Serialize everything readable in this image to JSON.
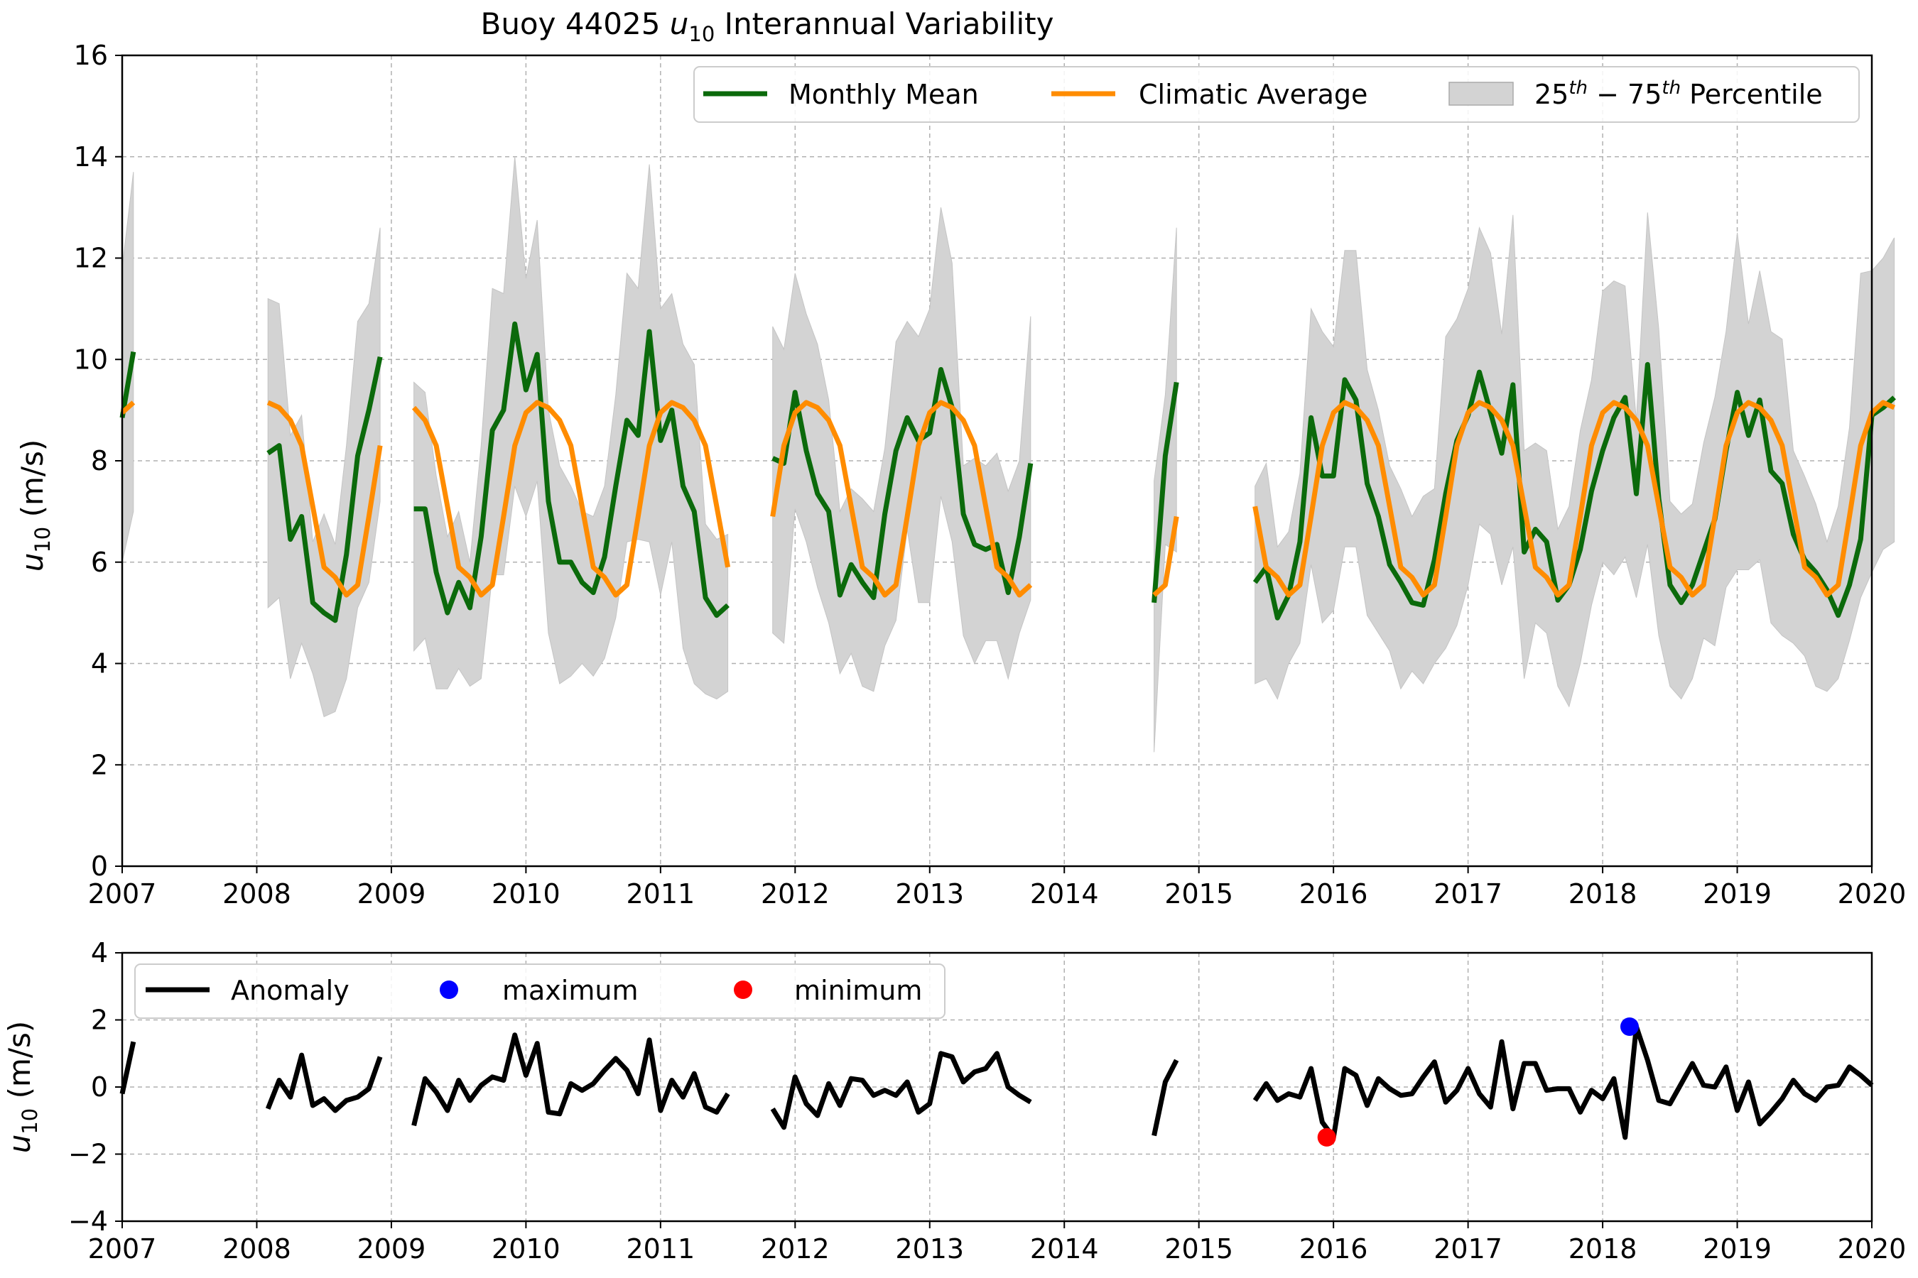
{
  "chart_data": [
    {
      "type": "line",
      "title_main": "Buoy 44025 ",
      "title_var": "u",
      "title_sub": "10",
      "title_rest": " Interannual Variability",
      "ylabel_var": "u",
      "ylabel_sub": "10",
      "ylabel_unit": " (m/s)",
      "xlim": [
        2007,
        2020
      ],
      "ylim": [
        0,
        16
      ],
      "xticks": [
        "2007",
        "2008",
        "2009",
        "2010",
        "2011",
        "2012",
        "2013",
        "2014",
        "2015",
        "2016",
        "2017",
        "2018",
        "2019",
        "2020"
      ],
      "yticks": [
        "0",
        "2",
        "4",
        "6",
        "8",
        "10",
        "12",
        "14",
        "16"
      ],
      "grid": true,
      "legend_position": "top-right",
      "legend": {
        "monthly_mean": "Monthly Mean",
        "climatic_average": "Climatic Average",
        "percentile_pre": "25",
        "percentile_sup1": "th",
        "percentile_mid": " − 75",
        "percentile_sup2": "th",
        "percentile_post": " Percentile"
      },
      "colors": {
        "monthly_mean": "#0b6a0b",
        "climatic_average": "#ff8c00",
        "percentile_band": "#d3d3d3"
      },
      "climatology": [
        8.95,
        9.15,
        9.05,
        8.8,
        8.3,
        7.1,
        5.9,
        5.7,
        5.35,
        5.55,
        6.9,
        8.3
      ],
      "segments": [
        {
          "start": 2007.0,
          "mean": [
            8.85,
            10.15
          ],
          "p25": [
            6.0,
            7.0
          ],
          "p75": [
            11.8,
            13.7
          ]
        },
        {
          "start": 2008.083,
          "mean": [
            8.15,
            8.3,
            6.45,
            6.9,
            5.2,
            5.0,
            4.85,
            6.15,
            8.1,
            9.0,
            10.05
          ],
          "p25": [
            5.1,
            5.3,
            3.7,
            4.4,
            3.8,
            2.95,
            3.05,
            3.7,
            5.1,
            5.6,
            7.2
          ],
          "p75": [
            11.2,
            11.1,
            8.5,
            8.9,
            6.4,
            6.95,
            6.35,
            8.3,
            10.75,
            11.1,
            12.6
          ]
        },
        {
          "start": 2009.167,
          "mean": [
            7.05,
            7.05,
            5.8,
            5.0,
            5.6,
            5.1,
            6.5,
            8.6,
            9.0,
            10.7,
            9.4,
            10.1,
            7.2,
            6.0,
            6.0,
            5.6,
            5.4,
            6.1,
            7.5,
            8.8,
            8.5,
            10.55,
            8.4,
            9.0,
            7.5,
            7.0,
            5.3,
            4.95,
            5.15
          ],
          "p25": [
            4.25,
            4.5,
            3.5,
            3.5,
            3.9,
            3.55,
            3.7,
            5.75,
            5.75,
            7.5,
            6.9,
            7.6,
            4.6,
            3.6,
            3.75,
            4.0,
            3.75,
            4.1,
            4.9,
            6.4,
            6.45,
            6.4,
            5.35,
            6.4,
            4.3,
            3.6,
            3.4,
            3.3,
            3.45
          ],
          "p75": [
            9.55,
            9.35,
            7.7,
            6.5,
            7.0,
            6.0,
            8.3,
            11.4,
            11.3,
            14.0,
            11.6,
            12.75,
            9.0,
            7.9,
            7.5,
            7.0,
            6.9,
            7.5,
            9.3,
            11.7,
            11.4,
            13.85,
            11.0,
            11.3,
            10.3,
            9.9,
            6.75,
            6.45,
            6.55
          ]
        },
        {
          "start": 2011.833,
          "mean": [
            8.05,
            7.95,
            9.35,
            8.2,
            7.35,
            7.0,
            5.35,
            5.95,
            5.6,
            5.3,
            6.95,
            8.2,
            8.85,
            8.4,
            8.55,
            9.8,
            9.05,
            6.95,
            6.35,
            6.25,
            6.35,
            5.4,
            6.5,
            7.95
          ],
          "p25": [
            4.6,
            4.4,
            7.05,
            6.4,
            5.5,
            4.8,
            3.8,
            4.2,
            3.55,
            3.45,
            4.35,
            4.85,
            6.65,
            5.2,
            5.2,
            7.3,
            6.4,
            4.55,
            4.0,
            4.45,
            4.45,
            3.7,
            4.6,
            5.25
          ],
          "p75": [
            10.65,
            10.2,
            11.7,
            10.9,
            10.3,
            9.2,
            7.0,
            7.45,
            7.25,
            7.0,
            8.25,
            10.35,
            10.75,
            10.45,
            11.0,
            13.0,
            11.9,
            7.9,
            8.05,
            7.9,
            8.15,
            7.4,
            8.0,
            10.85
          ]
        },
        {
          "start": 2014.667,
          "mean": [
            5.2,
            8.1,
            9.55
          ],
          "p25": [
            2.25,
            6.35,
            6.2
          ],
          "p75": [
            7.6,
            9.3,
            12.6
          ]
        },
        {
          "start": 2015.417,
          "mean": [
            5.6,
            5.9,
            4.9,
            5.35,
            6.4,
            8.85,
            7.7,
            7.7,
            9.6,
            9.2,
            7.55,
            6.9,
            5.95,
            5.6,
            5.2,
            5.15,
            6.05,
            7.35,
            8.4,
            8.9,
            9.75,
            8.95,
            8.15,
            9.5,
            6.2,
            6.65,
            6.4,
            5.25,
            5.55,
            6.25,
            7.4,
            8.2,
            8.85,
            9.25,
            7.35,
            9.9,
            7.25,
            5.55,
            5.2,
            5.55,
            6.2,
            6.85,
            8.2,
            9.35,
            8.5,
            9.2,
            7.8,
            7.55,
            6.55,
            6.05,
            5.8,
            5.45,
            4.95,
            5.55,
            6.45,
            8.9,
            9.05,
            9.25
          ],
          "p25": [
            3.6,
            3.7,
            3.3,
            4.0,
            4.4,
            5.95,
            4.8,
            5.05,
            6.3,
            6.3,
            4.95,
            4.6,
            4.25,
            3.5,
            3.85,
            3.6,
            4.0,
            4.3,
            4.75,
            5.55,
            6.75,
            6.55,
            5.55,
            6.3,
            3.7,
            4.8,
            4.6,
            3.55,
            3.15,
            4.0,
            5.15,
            6.0,
            5.75,
            6.1,
            5.3,
            6.35,
            4.55,
            3.55,
            3.3,
            3.7,
            4.5,
            4.35,
            5.5,
            5.85,
            5.85,
            6.05,
            4.8,
            4.55,
            4.4,
            4.15,
            3.55,
            3.45,
            3.7,
            4.45,
            5.3,
            5.8,
            6.25,
            6.4
          ],
          "p75": [
            7.5,
            7.95,
            6.3,
            6.6,
            7.75,
            11.0,
            10.55,
            10.25,
            12.15,
            12.15,
            9.8,
            9.0,
            7.9,
            7.45,
            6.9,
            7.3,
            7.45,
            10.45,
            10.8,
            11.4,
            12.6,
            12.1,
            10.5,
            12.85,
            8.2,
            8.35,
            8.2,
            6.65,
            7.1,
            8.6,
            9.6,
            11.35,
            11.55,
            11.45,
            8.8,
            12.9,
            10.6,
            7.2,
            6.95,
            7.15,
            8.35,
            9.25,
            10.55,
            12.5,
            10.7,
            11.75,
            10.55,
            10.4,
            8.2,
            7.7,
            7.15,
            6.4,
            7.1,
            8.65,
            11.7,
            11.75,
            12.0,
            12.4
          ]
        }
      ]
    },
    {
      "type": "line",
      "ylabel_var": "u",
      "ylabel_sub": "10",
      "ylabel_unit": " (m/s)",
      "xlim": [
        2007,
        2020
      ],
      "ylim": [
        -4,
        4
      ],
      "xticks": [
        "2007",
        "2008",
        "2009",
        "2010",
        "2011",
        "2012",
        "2013",
        "2014",
        "2015",
        "2016",
        "2017",
        "2018",
        "2019",
        "2020"
      ],
      "yticks": [
        "−4",
        "−2",
        "0",
        "2",
        "4"
      ],
      "grid": true,
      "legend_position": "top-left",
      "legend": {
        "anomaly": "Anomaly",
        "maximum": "maximum",
        "minimum": "minimum"
      },
      "colors": {
        "anomaly": "#000000",
        "maximum": "#0000ff",
        "minimum": "#ff0000"
      },
      "maximum_point": {
        "x": 2018.2,
        "y": 1.8
      },
      "minimum_point": {
        "x": 2015.95,
        "y": -1.5
      },
      "segments": [
        {
          "start": 2007.0,
          "values": [
            -0.2,
            1.35
          ]
        },
        {
          "start": 2008.083,
          "values": [
            -0.65,
            0.2,
            -0.3,
            0.95,
            -0.55,
            -0.35,
            -0.7,
            -0.4,
            -0.3,
            -0.05,
            0.9
          ]
        },
        {
          "start": 2009.167,
          "values": [
            -1.15,
            0.25,
            -0.15,
            -0.7,
            0.2,
            -0.4,
            0.05,
            0.3,
            0.2,
            1.55,
            0.35,
            1.3,
            -0.75,
            -0.8,
            0.1,
            -0.1,
            0.1,
            0.5,
            0.85,
            0.5,
            -0.2,
            1.4,
            -0.7,
            0.2,
            -0.3,
            0.4,
            -0.6,
            -0.75,
            -0.2
          ]
        },
        {
          "start": 2011.833,
          "values": [
            -0.65,
            -1.2,
            0.3,
            -0.5,
            -0.85,
            0.1,
            -0.55,
            0.25,
            0.2,
            -0.25,
            -0.1,
            -0.25,
            0.15,
            -0.75,
            -0.5,
            1.0,
            0.9,
            0.15,
            0.45,
            0.55,
            1.0,
            0.0,
            -0.25,
            -0.45
          ]
        },
        {
          "start": 2014.667,
          "values": [
            -1.45,
            0.15,
            0.8
          ]
        },
        {
          "start": 2015.417,
          "values": [
            -0.4,
            0.1,
            -0.4,
            -0.2,
            -0.3,
            0.55,
            -1.05,
            -1.5,
            0.55,
            0.35,
            -0.55,
            0.25,
            -0.05,
            -0.25,
            -0.2,
            0.3,
            0.75,
            -0.45,
            -0.1,
            0.55,
            -0.2,
            -0.6,
            1.35,
            -0.65,
            0.7,
            0.7,
            -0.1,
            -0.05,
            -0.05,
            -0.75,
            -0.1,
            -0.35,
            0.25,
            -1.5,
            1.8,
            0.8,
            -0.4,
            -0.5,
            0.1,
            0.7,
            0.05,
            0.0,
            0.6,
            -0.7,
            0.15,
            -1.1,
            -0.75,
            -0.35,
            0.2,
            -0.2,
            -0.4,
            0.0,
            0.05,
            0.6,
            0.35,
            0.05
          ]
        }
      ]
    }
  ]
}
